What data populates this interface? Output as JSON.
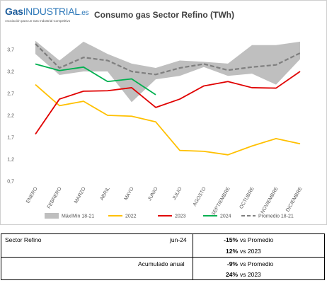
{
  "logo": {
    "brand_a": "Gas",
    "brand_b": "INDUSTRIAL",
    "brand_c": ".es",
    "tagline": "Asociación para un Gas Industrial Competitivo"
  },
  "chart_data": {
    "type": "line",
    "title": "Consumo gas Sector Refino (TWh)",
    "categories": [
      "ENERO",
      "FEBRERO",
      "MARZO",
      "ABRIL",
      "MAYO",
      "JUNIO",
      "JULIO",
      "AGOSTO",
      "SEPTIEMBRE",
      "OCTUBRE",
      "NOVIEMBRE",
      "DICIEMBRE"
    ],
    "y_ticks": [
      "0,7",
      "1,2",
      "1,7",
      "2,2",
      "2,7",
      "3,2",
      "3,7"
    ],
    "ylim": [
      0.7,
      4.2
    ],
    "band": {
      "name": "Máx/Min 18-21",
      "color": "#bfbfbf",
      "max": [
        3.9,
        3.45,
        3.88,
        3.6,
        3.38,
        3.28,
        3.45,
        3.42,
        3.38,
        3.8,
        3.8,
        3.88
      ],
      "min": [
        3.6,
        3.12,
        3.2,
        3.2,
        2.5,
        3.02,
        3.1,
        3.3,
        3.1,
        3.15,
        2.9,
        3.48
      ]
    },
    "series": [
      {
        "name": "2022",
        "color": "#ffc000",
        "values": [
          2.9,
          2.42,
          2.52,
          2.2,
          2.18,
          2.05,
          1.4,
          1.38,
          1.3,
          1.5,
          1.67,
          1.55
        ]
      },
      {
        "name": "2023",
        "color": "#e00000",
        "values": [
          1.77,
          2.57,
          2.75,
          2.76,
          2.83,
          2.38,
          2.57,
          2.87,
          2.97,
          2.83,
          2.82,
          3.2
        ]
      },
      {
        "name": "2024",
        "color": "#00b050",
        "values": [
          3.37,
          3.22,
          3.3,
          2.97,
          3.03,
          2.67,
          null,
          null,
          null,
          null,
          null,
          null
        ]
      },
      {
        "name": "Promedio 18-21",
        "color": "#7f7f7f",
        "dashed": true,
        "values": [
          3.83,
          3.28,
          3.52,
          3.45,
          3.2,
          3.13,
          3.28,
          3.37,
          3.23,
          3.3,
          3.35,
          3.62
        ]
      }
    ],
    "legend_position": "bottom",
    "grid": false
  },
  "summary": {
    "sector_label": "Sector Refino",
    "period": "jun-24",
    "row1_pct": "-15%",
    "row1_label": "vs Promedio",
    "row2_pct": "12%",
    "row2_label": "vs 2023",
    "cumulative_label": "Acumulado anual",
    "row3_pct": "-9%",
    "row3_label": "vs Promedio",
    "row4_pct": "24%",
    "row4_label": "vs 2023"
  }
}
